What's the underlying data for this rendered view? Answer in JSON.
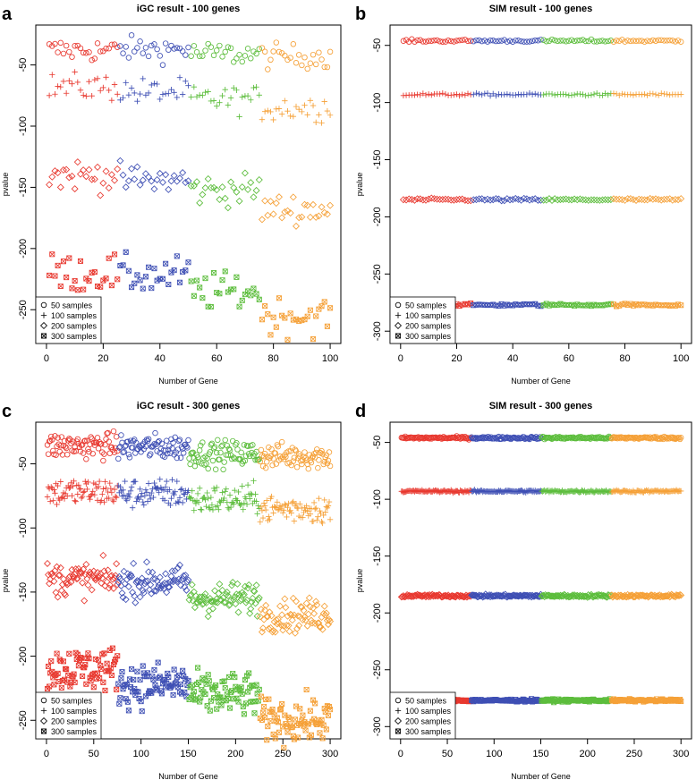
{
  "figure": {
    "legend_entries": [
      "50 samples",
      "100 samples",
      "200 samples",
      "300 samples"
    ],
    "legend_symbols": [
      "circle",
      "plus",
      "diamond",
      "boxed-x"
    ],
    "group_colors": [
      "#e8382f",
      "#3e4fb4",
      "#5cbd3c",
      "#f5a037"
    ],
    "axis_color": "#000000"
  },
  "chart_data": [
    {
      "panel_label": "a",
      "type": "scatter",
      "title": "iGC result - 100 genes",
      "xlabel": "Number of Gene",
      "ylabel": "pvalue",
      "n_genes": 100,
      "xlim": [
        0,
        100
      ],
      "ylim": [
        -275,
        -20
      ],
      "xticks": [
        0,
        20,
        40,
        60,
        80,
        100
      ],
      "xtick_labels": [
        "0",
        "20",
        "40",
        "60",
        "80",
        "100"
      ],
      "yticks": [
        -250,
        -200,
        -150,
        -100,
        -50
      ],
      "ytick_labels": [
        "-250",
        "-200",
        "-150",
        "-100",
        "-50"
      ],
      "legend_position": "bottom-left",
      "color_groups": [
        {
          "color": "#e8382f",
          "x_range": [
            1,
            25
          ]
        },
        {
          "color": "#3e4fb4",
          "x_range": [
            26,
            50
          ]
        },
        {
          "color": "#5cbd3c",
          "x_range": [
            51,
            75
          ]
        },
        {
          "color": "#f5a037",
          "x_range": [
            76,
            100
          ]
        }
      ],
      "series": [
        {
          "name": "50 samples",
          "marker": "circle",
          "approx_center_by_quarter": [
            -38,
            -37,
            -41,
            -43
          ],
          "approx_spread": 7
        },
        {
          "name": "100 samples",
          "marker": "plus",
          "approx_center_by_quarter": [
            -68,
            -72,
            -78,
            -85
          ],
          "approx_spread": 8
        },
        {
          "name": "200 samples",
          "marker": "diamond",
          "approx_center_by_quarter": [
            -140,
            -144,
            -152,
            -168
          ],
          "approx_spread": 9
        },
        {
          "name": "300 samples",
          "marker": "boxed-x",
          "approx_center_by_quarter": [
            -220,
            -222,
            -235,
            -255
          ],
          "approx_spread": 11
        }
      ]
    },
    {
      "panel_label": "b",
      "type": "scatter",
      "title": "SIM result - 100 genes",
      "xlabel": "Number of Gene",
      "ylabel": "pvalue",
      "n_genes": 100,
      "xlim": [
        0,
        100
      ],
      "ylim": [
        -308,
        -35
      ],
      "xticks": [
        0,
        20,
        40,
        60,
        80,
        100
      ],
      "xtick_labels": [
        "0",
        "20",
        "40",
        "60",
        "80",
        "100"
      ],
      "yticks": [
        -300,
        -250,
        -200,
        -150,
        -100,
        -50
      ],
      "ytick_labels": [
        "-300",
        "-250",
        "-200",
        "-150",
        "-100",
        "-50"
      ],
      "legend_position": "bottom-left",
      "color_groups": [
        {
          "color": "#e8382f",
          "x_range": [
            1,
            25
          ]
        },
        {
          "color": "#3e4fb4",
          "x_range": [
            26,
            50
          ]
        },
        {
          "color": "#5cbd3c",
          "x_range": [
            51,
            75
          ]
        },
        {
          "color": "#f5a037",
          "x_range": [
            76,
            100
          ]
        }
      ],
      "series": [
        {
          "name": "50 samples",
          "marker": "circle",
          "approx_center_by_quarter": [
            -46,
            -46,
            -46,
            -46
          ],
          "approx_spread": 0.8
        },
        {
          "name": "100 samples",
          "marker": "plus",
          "approx_center_by_quarter": [
            -93,
            -93,
            -93,
            -93
          ],
          "approx_spread": 0.8
        },
        {
          "name": "200 samples",
          "marker": "diamond",
          "approx_center_by_quarter": [
            -185,
            -185,
            -185,
            -185
          ],
          "approx_spread": 0.8
        },
        {
          "name": "300 samples",
          "marker": "boxed-x",
          "approx_center_by_quarter": [
            -277,
            -277,
            -277,
            -277
          ],
          "approx_spread": 0.8
        }
      ]
    },
    {
      "panel_label": "c",
      "type": "scatter",
      "title": "iGC result - 300 genes",
      "xlabel": "Number of Gene",
      "ylabel": "pvalue",
      "n_genes": 300,
      "xlim": [
        0,
        300
      ],
      "ylim": [
        -262,
        -20
      ],
      "xticks": [
        0,
        50,
        100,
        150,
        200,
        250,
        300
      ],
      "xtick_labels": [
        "0",
        "50",
        "100",
        "150",
        "200",
        "250",
        "300"
      ],
      "yticks": [
        -250,
        -200,
        -150,
        -100,
        -50
      ],
      "ytick_labels": [
        "-250",
        "-200",
        "-150",
        "-100",
        "-50"
      ],
      "legend_position": "bottom-left",
      "color_groups": [
        {
          "color": "#e8382f",
          "x_range": [
            1,
            75
          ]
        },
        {
          "color": "#3e4fb4",
          "x_range": [
            76,
            150
          ]
        },
        {
          "color": "#5cbd3c",
          "x_range": [
            151,
            225
          ]
        },
        {
          "color": "#f5a037",
          "x_range": [
            226,
            300
          ]
        }
      ],
      "series": [
        {
          "name": "50 samples",
          "marker": "circle",
          "approx_center_by_quarter": [
            -36,
            -37,
            -42,
            -44
          ],
          "approx_spread": 7
        },
        {
          "name": "100 samples",
          "marker": "plus",
          "approx_center_by_quarter": [
            -72,
            -73,
            -78,
            -85
          ],
          "approx_spread": 8
        },
        {
          "name": "200 samples",
          "marker": "diamond",
          "approx_center_by_quarter": [
            -140,
            -142,
            -155,
            -168
          ],
          "approx_spread": 9
        },
        {
          "name": "300 samples",
          "marker": "boxed-x",
          "approx_center_by_quarter": [
            -210,
            -222,
            -230,
            -250
          ],
          "approx_spread": 12
        }
      ]
    },
    {
      "panel_label": "d",
      "type": "scatter",
      "title": "SIM result - 300 genes",
      "xlabel": "Number of Gene",
      "ylabel": "pvalue",
      "n_genes": 300,
      "xlim": [
        0,
        300
      ],
      "ylim": [
        -308,
        -35
      ],
      "xticks": [
        0,
        50,
        100,
        150,
        200,
        250,
        300
      ],
      "xtick_labels": [
        "0",
        "50",
        "100",
        "150",
        "200",
        "250",
        "300"
      ],
      "yticks": [
        -300,
        -250,
        -200,
        -150,
        -100,
        -50
      ],
      "ytick_labels": [
        "-300",
        "-250",
        "-200",
        "-150",
        "-100",
        "-50"
      ],
      "legend_position": "bottom-left",
      "color_groups": [
        {
          "color": "#e8382f",
          "x_range": [
            1,
            75
          ]
        },
        {
          "color": "#3e4fb4",
          "x_range": [
            76,
            150
          ]
        },
        {
          "color": "#5cbd3c",
          "x_range": [
            151,
            225
          ]
        },
        {
          "color": "#f5a037",
          "x_range": [
            226,
            300
          ]
        }
      ],
      "series": [
        {
          "name": "50 samples",
          "marker": "circle",
          "approx_center_by_quarter": [
            -46,
            -46,
            -46,
            -46
          ],
          "approx_spread": 0.8
        },
        {
          "name": "100 samples",
          "marker": "plus",
          "approx_center_by_quarter": [
            -93,
            -93,
            -93,
            -93
          ],
          "approx_spread": 0.8
        },
        {
          "name": "200 samples",
          "marker": "diamond",
          "approx_center_by_quarter": [
            -185,
            -185,
            -185,
            -185
          ],
          "approx_spread": 0.8
        },
        {
          "name": "300 samples",
          "marker": "boxed-x",
          "approx_center_by_quarter": [
            -277,
            -277,
            -277,
            -277
          ],
          "approx_spread": 0.8
        }
      ]
    }
  ]
}
